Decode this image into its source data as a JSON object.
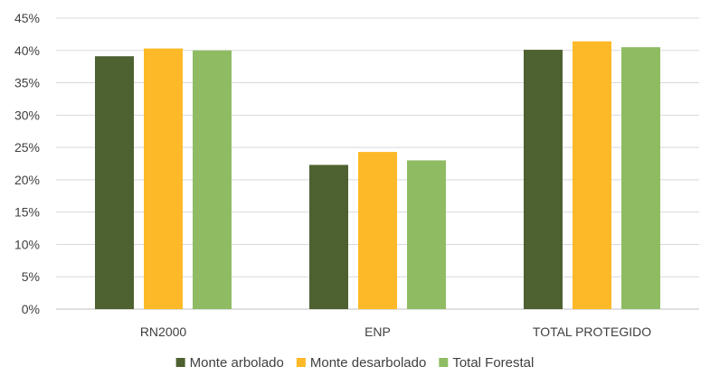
{
  "chart_data": {
    "type": "bar",
    "categories": [
      "RN2000",
      "ENP",
      "TOTAL PROTEGIDO"
    ],
    "series": [
      {
        "name": "Monte arbolado",
        "values": [
          39.1,
          22.3,
          40.1
        ],
        "color": "#4e6130"
      },
      {
        "name": "Monte desarbolado",
        "values": [
          40.3,
          24.3,
          41.4
        ],
        "color": "#fdb927"
      },
      {
        "name": "Total Forestal",
        "values": [
          40.0,
          23.0,
          40.5
        ],
        "color": "#8fbc63"
      }
    ],
    "yticks": [
      0,
      5,
      10,
      15,
      20,
      25,
      30,
      35,
      40,
      45
    ],
    "ytick_labels": [
      "0%",
      "5%",
      "10%",
      "15%",
      "20%",
      "25%",
      "30%",
      "35%",
      "40%",
      "45%"
    ],
    "ylim": [
      0,
      45
    ],
    "grid": true,
    "legend_position": "bottom"
  }
}
